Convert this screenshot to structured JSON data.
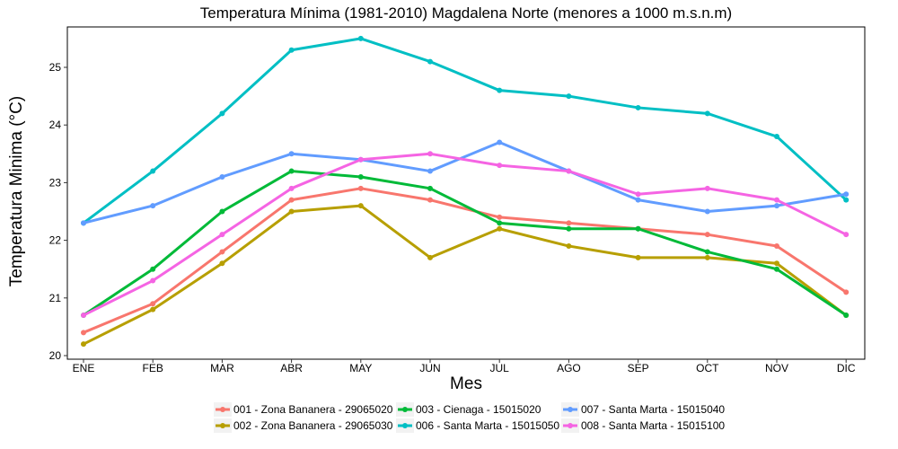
{
  "chart_data": {
    "type": "line",
    "title": "Temperatura Mínima (1981-2010) Magdalena Norte (menores a 1000 m.s.n.m)",
    "xlabel": "Mes",
    "ylabel": "Temperatura Minima (°C)",
    "categories": [
      "ENE",
      "FEB",
      "MAR",
      "ABR",
      "MAY",
      "JUN",
      "JUL",
      "AGO",
      "SEP",
      "OCT",
      "NOV",
      "DIC"
    ],
    "ylim": [
      20,
      25.7
    ],
    "yticks": [
      20,
      21,
      22,
      23,
      24,
      25
    ],
    "grid": false,
    "legend_position": "bottom",
    "series": [
      {
        "name": "001 - Zona Bananera - 29065020",
        "color": "#F8766D",
        "values": [
          20.4,
          20.9,
          21.8,
          22.7,
          22.9,
          22.7,
          22.4,
          22.3,
          22.2,
          22.1,
          21.9,
          21.1
        ]
      },
      {
        "name": "002 - Zona Bananera - 29065030",
        "color": "#B79F00",
        "values": [
          20.2,
          20.8,
          21.6,
          22.5,
          22.6,
          21.7,
          22.2,
          21.9,
          21.7,
          21.7,
          21.6,
          20.7
        ]
      },
      {
        "name": "003 - Cienaga - 15015020",
        "color": "#00BA38",
        "values": [
          20.7,
          21.5,
          22.5,
          23.2,
          23.1,
          22.9,
          22.3,
          22.2,
          22.2,
          21.8,
          21.5,
          20.7
        ]
      },
      {
        "name": "006 - Santa Marta - 15015050",
        "color": "#00BFC4",
        "values": [
          22.3,
          23.2,
          24.2,
          25.3,
          25.5,
          25.1,
          24.6,
          24.5,
          24.3,
          24.2,
          23.8,
          22.7
        ]
      },
      {
        "name": "007 - Santa Marta - 15015040",
        "color": "#619CFF",
        "values": [
          22.3,
          22.6,
          23.1,
          23.5,
          23.4,
          23.2,
          23.7,
          23.2,
          22.7,
          22.5,
          22.6,
          22.8
        ]
      },
      {
        "name": "008 - Santa Marta - 15015100",
        "color": "#F564E3",
        "values": [
          20.7,
          21.3,
          22.1,
          22.9,
          23.4,
          23.5,
          23.3,
          23.2,
          22.8,
          22.9,
          22.7,
          22.1
        ]
      }
    ]
  }
}
